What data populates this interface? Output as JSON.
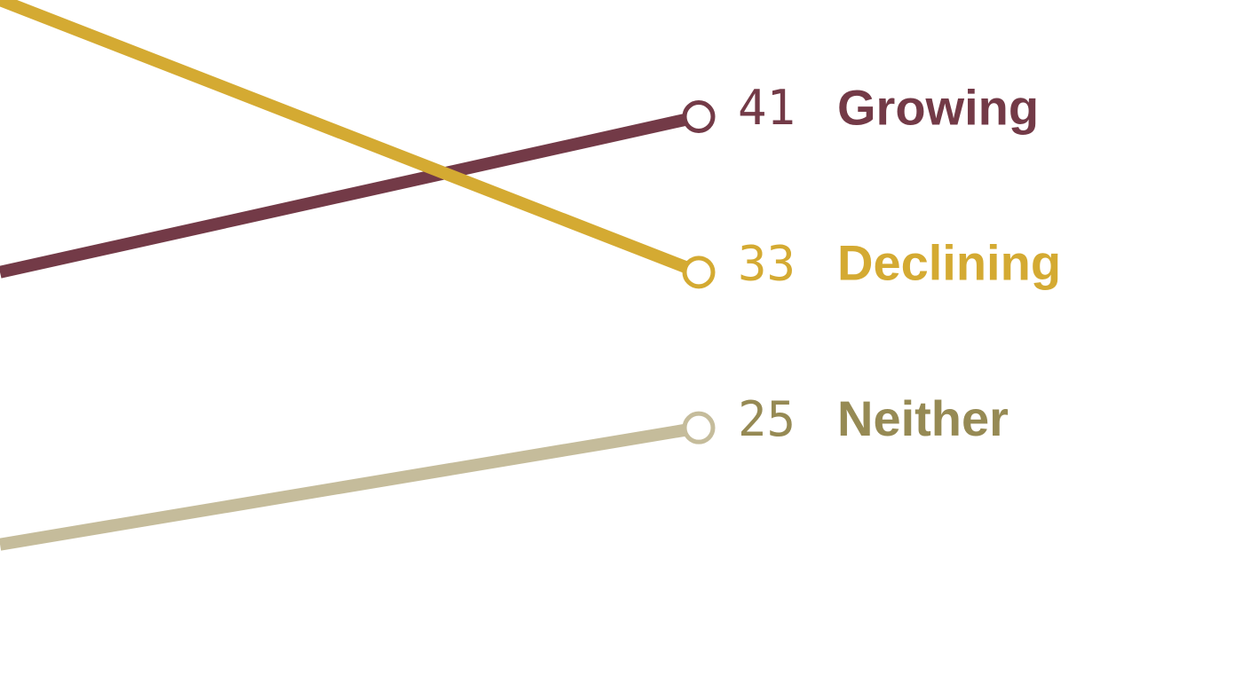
{
  "chart_data": {
    "type": "line",
    "categories": [
      null,
      null
    ],
    "series": [
      {
        "name": "Growing",
        "color": "#733a47",
        "label_color": "#733a47",
        "values": [
          33,
          41
        ]
      },
      {
        "name": "Declining",
        "color": "#d4aa32",
        "label_color": "#d4aa32",
        "values": [
          47,
          33
        ]
      },
      {
        "name": "Neither",
        "color": "#c5bc9b",
        "label_color": "#968a54",
        "values": [
          19,
          25
        ]
      }
    ],
    "ylim": [
      11,
      47
    ]
  }
}
